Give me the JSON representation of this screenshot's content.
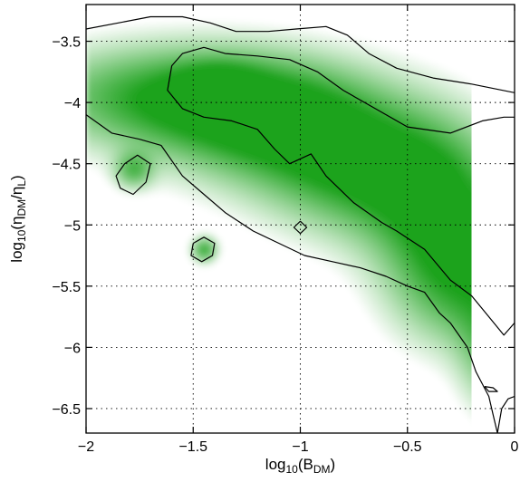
{
  "chart_data": {
    "type": "heatmap",
    "title": "",
    "xlabel": {
      "pre": "log",
      "sub": "10",
      "mid": "(B",
      "sub2": "DM",
      "post": ")"
    },
    "ylabel": {
      "pre": "log",
      "sub": "10",
      "mid": "(η",
      "sub2": "DM",
      "mid2": "/η",
      "sub3": "L",
      "post": ")"
    },
    "xlim": [
      -2,
      0
    ],
    "ylim": [
      -6.7,
      -3.2
    ],
    "xticks": [
      -2,
      -1.5,
      -1,
      -0.5,
      0
    ],
    "xtick_labels": [
      "-2",
      "-1.5",
      "-1",
      "-0.5",
      "0"
    ],
    "yticks": [
      -6.5,
      -6,
      -5.5,
      -5,
      -4.5,
      -4,
      -3.5
    ],
    "ytick_labels": [
      "-6.5",
      "-6",
      "-5.5",
      "-5",
      "-4.5",
      "-4",
      "-3.5"
    ],
    "grid": true,
    "grid_style": "dotted",
    "colors": {
      "low": "#ffffff",
      "mid": "#1fa31f",
      "high": "#ff0000",
      "peak": "#1a0000",
      "contour": "#000000"
    },
    "density_sources": [
      {
        "x": -1.55,
        "y": -3.95,
        "sx": 0.45,
        "sy": 0.28,
        "w": 0.55
      },
      {
        "x": -1.38,
        "y": -3.85,
        "sx": 0.12,
        "sy": 0.12,
        "w": 0.25
      },
      {
        "x": -1.1,
        "y": -4.2,
        "sx": 0.35,
        "sy": 0.32,
        "w": 0.5
      },
      {
        "x": -0.7,
        "y": -4.55,
        "sx": 0.3,
        "sy": 0.35,
        "w": 0.5
      },
      {
        "x": -0.35,
        "y": -4.9,
        "sx": 0.22,
        "sy": 0.45,
        "w": 0.5
      },
      {
        "x": -0.25,
        "y": -5.5,
        "sx": 0.2,
        "sy": 0.35,
        "w": 0.35
      },
      {
        "x": -0.12,
        "y": -6.0,
        "sx": 0.1,
        "sy": 0.35,
        "w": 0.3
      },
      {
        "x": -0.02,
        "y": -4.35,
        "sx": 0.05,
        "sy": 0.18,
        "w": 1.45
      },
      {
        "x": -0.07,
        "y": -4.7,
        "sx": 0.05,
        "sy": 0.12,
        "w": 0.9
      },
      {
        "x": 0.0,
        "y": -5.55,
        "sx": 0.05,
        "sy": 0.15,
        "w": 2.3
      },
      {
        "x": -0.04,
        "y": -5.25,
        "sx": 0.06,
        "sy": 0.12,
        "w": 0.7
      },
      {
        "x": -0.03,
        "y": -6.45,
        "sx": 0.04,
        "sy": 0.07,
        "w": 0.6
      },
      {
        "x": -1.45,
        "y": -5.2,
        "sx": 0.04,
        "sy": 0.07,
        "w": 0.45
      },
      {
        "x": -1.78,
        "y": -4.55,
        "sx": 0.06,
        "sy": 0.1,
        "w": 0.35
      }
    ],
    "contours": [
      {
        "name": "outer",
        "points": [
          [
            -2,
            -3.4
          ],
          [
            -1.85,
            -3.35
          ],
          [
            -1.7,
            -3.3
          ],
          [
            -1.55,
            -3.3
          ],
          [
            -1.42,
            -3.35
          ],
          [
            -1.3,
            -3.42
          ],
          [
            -1.15,
            -3.42
          ],
          [
            -1.02,
            -3.4
          ],
          [
            -0.88,
            -3.38
          ],
          [
            -0.78,
            -3.45
          ],
          [
            -0.68,
            -3.6
          ],
          [
            -0.55,
            -3.72
          ],
          [
            -0.38,
            -3.8
          ],
          [
            -0.2,
            -3.85
          ],
          [
            0,
            -3.92
          ]
        ]
      },
      {
        "name": "inner",
        "points": [
          [
            -1.45,
            -3.55
          ],
          [
            -1.35,
            -3.6
          ],
          [
            -1.2,
            -3.62
          ],
          [
            -1.05,
            -3.65
          ],
          [
            -0.92,
            -3.75
          ],
          [
            -0.8,
            -3.9
          ],
          [
            -0.65,
            -4.05
          ],
          [
            -0.5,
            -4.2
          ],
          [
            -0.3,
            -4.25
          ],
          [
            -0.15,
            -4.15
          ],
          [
            -0.05,
            -4.12
          ],
          [
            0,
            -4.12
          ],
          [
            0,
            -5.8
          ],
          [
            -0.05,
            -5.9
          ],
          [
            -0.12,
            -5.75
          ],
          [
            -0.2,
            -5.58
          ],
          [
            -0.3,
            -5.45
          ],
          [
            -0.42,
            -5.2
          ],
          [
            -0.55,
            -5.05
          ],
          [
            -0.62,
            -4.98
          ],
          [
            -0.75,
            -4.82
          ],
          [
            -0.88,
            -4.6
          ],
          [
            -0.95,
            -4.42
          ],
          [
            -1.05,
            -4.5
          ],
          [
            -1.12,
            -4.38
          ],
          [
            -1.2,
            -4.22
          ],
          [
            -1.32,
            -4.15
          ],
          [
            -1.45,
            -4.12
          ],
          [
            -1.55,
            -4.05
          ],
          [
            -1.62,
            -3.9
          ],
          [
            -1.6,
            -3.7
          ],
          [
            -1.55,
            -3.6
          ],
          [
            -1.45,
            -3.55
          ]
        ]
      },
      {
        "name": "lower",
        "points": [
          [
            -2,
            -4.1
          ],
          [
            -1.88,
            -4.25
          ],
          [
            -1.75,
            -4.3
          ],
          [
            -1.65,
            -4.35
          ],
          [
            -1.55,
            -4.6
          ],
          [
            -1.45,
            -4.75
          ],
          [
            -1.35,
            -4.9
          ],
          [
            -1.22,
            -5.05
          ],
          [
            -1.1,
            -5.15
          ],
          [
            -0.98,
            -5.25
          ],
          [
            -0.85,
            -5.3
          ],
          [
            -0.72,
            -5.35
          ],
          [
            -0.6,
            -5.42
          ],
          [
            -0.5,
            -5.5
          ],
          [
            -0.42,
            -5.55
          ],
          [
            -0.35,
            -5.72
          ],
          [
            -0.3,
            -5.8
          ],
          [
            -0.22,
            -6.0
          ],
          [
            -0.18,
            -6.2
          ],
          [
            -0.12,
            -6.4
          ],
          [
            -0.1,
            -6.55
          ],
          [
            -0.08,
            -6.7
          ]
        ]
      },
      {
        "name": "blob-left",
        "points": [
          [
            -1.82,
            -4.5
          ],
          [
            -1.76,
            -4.43
          ],
          [
            -1.7,
            -4.5
          ],
          [
            -1.72,
            -4.65
          ],
          [
            -1.78,
            -4.75
          ],
          [
            -1.84,
            -4.7
          ],
          [
            -1.86,
            -4.6
          ],
          [
            -1.82,
            -4.5
          ]
        ]
      },
      {
        "name": "blob-mid",
        "points": [
          [
            -1.5,
            -5.15
          ],
          [
            -1.45,
            -5.1
          ],
          [
            -1.4,
            -5.15
          ],
          [
            -1.41,
            -5.25
          ],
          [
            -1.46,
            -5.3
          ],
          [
            -1.51,
            -5.25
          ],
          [
            -1.5,
            -5.15
          ]
        ]
      },
      {
        "name": "diamond",
        "points": [
          [
            -1.0,
            -4.97
          ],
          [
            -0.97,
            -5.02
          ],
          [
            -1.0,
            -5.07
          ],
          [
            -1.03,
            -5.02
          ],
          [
            -1.0,
            -4.97
          ]
        ]
      },
      {
        "name": "small-lower",
        "points": [
          [
            -0.14,
            -6.32
          ],
          [
            -0.1,
            -6.33
          ],
          [
            -0.08,
            -6.36
          ],
          [
            -0.12,
            -6.36
          ],
          [
            -0.14,
            -6.32
          ]
        ]
      },
      {
        "name": "corner",
        "points": [
          [
            -0.08,
            -6.7
          ],
          [
            -0.06,
            -6.5
          ],
          [
            -0.03,
            -6.42
          ],
          [
            0,
            -6.4
          ]
        ]
      }
    ]
  }
}
